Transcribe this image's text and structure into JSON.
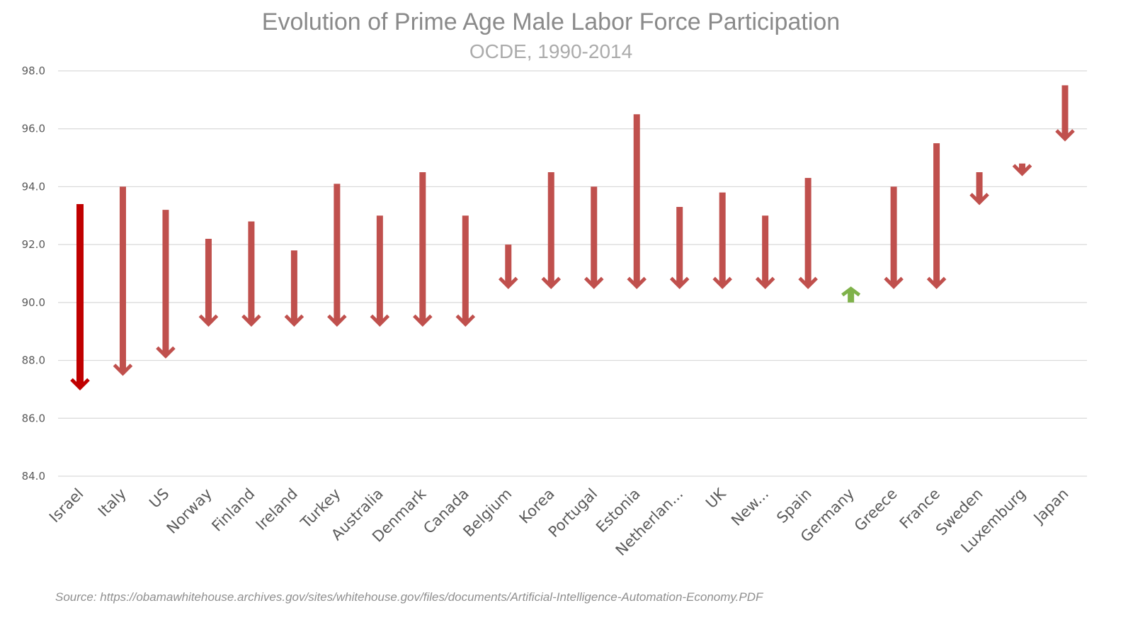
{
  "chart_data": {
    "type": "bar",
    "title": "Evolution of Prime Age Male Labor Force Participation",
    "subtitle": "OCDE, 1990-2014",
    "source": "Source: https://obamawhitehouse.archives.gov/sites/whitehouse.gov/files/documents/Artificial-Intelligence-Automation-Economy.PDF",
    "ylim": [
      84,
      98
    ],
    "yticks": [
      "84.0",
      "86.0",
      "88.0",
      "90.0",
      "92.0",
      "94.0",
      "96.0",
      "98.0"
    ],
    "grid": true,
    "categories": [
      "Israel",
      "Italy",
      "US",
      "Norway",
      "Finland",
      "Ireland",
      "Turkey",
      "Australia",
      "Denmark",
      "Canada",
      "Belgium",
      "Korea",
      "Portugal",
      "Estonia",
      "Netherlan...",
      "UK",
      "New...",
      "Spain",
      "Germany",
      "Greece",
      "France",
      "Sweden",
      "Luxemburg",
      "Japan"
    ],
    "series": [
      {
        "values": [
          93.4,
          94.0,
          93.2,
          92.2,
          92.8,
          91.8,
          94.1,
          93.0,
          94.5,
          93.0,
          92.0,
          94.5,
          94.0,
          96.5,
          93.3,
          93.8,
          93.0,
          94.3,
          90.0,
          94.0,
          95.5,
          94.5,
          94.8,
          97.5
        ]
      },
      {
        "values": [
          87.0,
          87.5,
          88.1,
          89.2,
          89.2,
          89.2,
          89.2,
          89.2,
          89.2,
          89.2,
          90.5,
          90.5,
          90.5,
          90.5,
          90.5,
          90.5,
          90.5,
          90.5,
          90.5,
          90.5,
          90.5,
          93.4,
          94.4,
          95.6
        ]
      }
    ],
    "colors": {
      "decrease": "#c0504d",
      "decrease_highlight": "#c00000",
      "increase": "#7fb24a",
      "grid": "#d9d9d9"
    }
  }
}
